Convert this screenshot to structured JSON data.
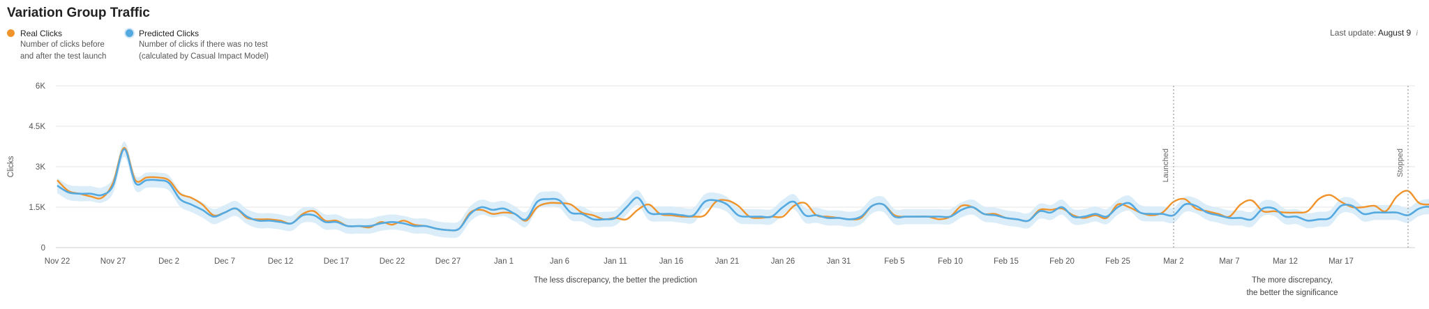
{
  "title": "Variation Group Traffic",
  "legend": [
    {
      "name": "Real Clicks",
      "desc1": "Number of clicks before",
      "desc2": "and after the test launch",
      "color": "#f0932b"
    },
    {
      "name": "Predicted Clicks",
      "desc1": "Number of clicks if there was no test",
      "desc2": "(calculated by Casual Impact Model)",
      "color": "#54a9e0"
    }
  ],
  "last_update": {
    "label": "Last update:",
    "value": "August 9",
    "icon": "info-icon"
  },
  "chart_data": {
    "type": "line",
    "ylabel": "Clicks",
    "ylim": [
      0,
      6000
    ],
    "yticks": [
      "0",
      "1.5K",
      "3K",
      "4.5K",
      "6K"
    ],
    "ytick_values": [
      0,
      1500,
      3000,
      4500,
      6000
    ],
    "xticks": [
      "Nov 22",
      "Nov 27",
      "Dec 2",
      "Dec 7",
      "Dec 12",
      "Dec 17",
      "Dec 22",
      "Dec 27",
      "Jan 1",
      "Jan 6",
      "Jan 11",
      "Jan 16",
      "Jan 21",
      "Jan 26",
      "Jan 31",
      "Feb 5",
      "Feb 10",
      "Feb 15",
      "Feb 20",
      "Feb 25",
      "Mar 2",
      "Mar 7",
      "Mar 12",
      "Mar 17"
    ],
    "markers": [
      {
        "label": "Launched",
        "day": 100
      },
      {
        "label": "Stopped",
        "day": 121
      }
    ],
    "annotations": [
      {
        "text": "The less discrepancy, the better the prediction"
      },
      {
        "text": "The more discrepancy,",
        "text2": "the better the significance"
      }
    ],
    "series": [
      {
        "name": "Real Clicks",
        "color": "#f0932b",
        "values": [
          2500,
          2100,
          2000,
          1900,
          1850,
          2400,
          3700,
          2500,
          2600,
          2600,
          2500,
          2000,
          1850,
          1600,
          1200,
          1300,
          1450,
          1100,
          1050,
          1050,
          1000,
          900,
          1250,
          1350,
          1000,
          1000,
          800,
          800,
          750,
          950,
          850,
          1000,
          850,
          800,
          700,
          650,
          700,
          1300,
          1400,
          1250,
          1300,
          1250,
          1000,
          1500,
          1650,
          1650,
          1600,
          1300,
          1200,
          1050,
          1100,
          1050,
          1400,
          1600,
          1250,
          1200,
          1150,
          1150,
          1200,
          1700,
          1750,
          1550,
          1150,
          1100,
          1150,
          1150,
          1550,
          1650,
          1200,
          1150,
          1100,
          1050,
          1100,
          1550,
          1600,
          1200,
          1150,
          1150,
          1150,
          1050,
          1150,
          1550,
          1500,
          1250,
          1250,
          1100,
          1050,
          1000,
          1400,
          1400,
          1450,
          1200,
          1100,
          1200,
          1100,
          1600,
          1500,
          1300,
          1200,
          1300,
          1700,
          1800,
          1450,
          1350,
          1250,
          1150,
          1600,
          1750,
          1350,
          1350,
          1300,
          1300,
          1350,
          1800,
          1950,
          1700,
          1500,
          1500,
          1550,
          1350,
          1900,
          2100,
          1650,
          1600
        ]
      },
      {
        "name": "Predicted Clicks",
        "color": "#54a9e0",
        "values": [
          2300,
          2050,
          2000,
          2000,
          1950,
          2300,
          3650,
          2400,
          2500,
          2500,
          2400,
          1800,
          1600,
          1400,
          1150,
          1300,
          1450,
          1150,
          1000,
          1000,
          950,
          900,
          1200,
          1200,
          950,
          950,
          800,
          800,
          800,
          900,
          950,
          900,
          800,
          800,
          700,
          650,
          700,
          1250,
          1500,
          1400,
          1450,
          1250,
          1050,
          1700,
          1800,
          1750,
          1300,
          1250,
          1050,
          1050,
          1100,
          1500,
          1850,
          1300,
          1250,
          1250,
          1200,
          1200,
          1700,
          1750,
          1600,
          1200,
          1150,
          1150,
          1150,
          1500,
          1700,
          1200,
          1200,
          1100,
          1100,
          1050,
          1150,
          1550,
          1600,
          1150,
          1150,
          1150,
          1150,
          1150,
          1150,
          1400,
          1500,
          1250,
          1200,
          1100,
          1050,
          1000,
          1350,
          1300,
          1500,
          1150,
          1150,
          1250,
          1150,
          1500,
          1650,
          1300,
          1250,
          1250,
          1200,
          1600,
          1550,
          1300,
          1200,
          1100,
          1100,
          1050,
          1450,
          1450,
          1150,
          1150,
          1000,
          1050,
          1100,
          1550,
          1550,
          1250,
          1300,
          1300,
          1300,
          1200,
          1450,
          1500,
          1200,
          1200
        ]
      }
    ]
  }
}
